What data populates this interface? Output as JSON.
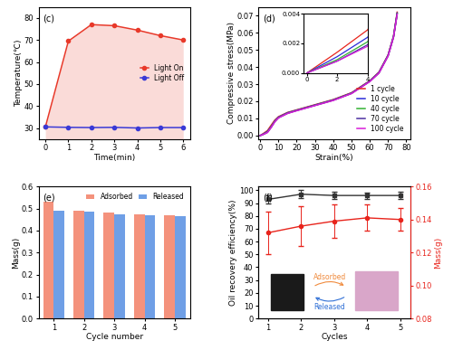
{
  "chart_data": [
    {
      "type": "line",
      "annotations": [
        "(c)"
      ],
      "x_label": "Time(min)",
      "y_label": "Temperature(℃)",
      "x": [
        0,
        1,
        2,
        3,
        4,
        5,
        6
      ],
      "series": [
        {
          "name": "Light On",
          "color": "#e8392a",
          "marker": "circle",
          "values": [
            30.5,
            69.5,
            77,
            76.5,
            74.5,
            72,
            70
          ]
        },
        {
          "name": "Light Off",
          "color": "#3a3ad6",
          "marker": "circle",
          "values": [
            30.5,
            30.3,
            30.2,
            30.3,
            30.0,
            30.2,
            30.2
          ]
        }
      ],
      "xlim": [
        -0.3,
        6.3
      ],
      "xticks": [
        0,
        1,
        2,
        3,
        4,
        5,
        6
      ],
      "ylim": [
        25,
        85
      ],
      "yticks": [
        30,
        40,
        50,
        60,
        70,
        80
      ],
      "legend": "center right"
    },
    {
      "type": "line",
      "annotations": [
        "(d)"
      ],
      "x_label": "Strain(%)",
      "y_label": "Compressive stress(MPa)",
      "x": [
        0,
        2,
        4,
        6,
        8,
        10,
        15,
        20,
        30,
        40,
        50,
        60,
        65,
        70,
        73,
        75
      ],
      "series": [
        {
          "name": "1 cycle",
          "color": "#e8241c",
          "values": [
            0,
            0.0014,
            0.0029,
            0.006,
            0.009,
            0.011,
            0.0135,
            0.015,
            0.018,
            0.021,
            0.025,
            0.032,
            0.037,
            0.047,
            0.058,
            0.072
          ]
        },
        {
          "name": "10 cycle",
          "color": "#2b2bd9",
          "values": [
            0,
            0.0011,
            0.0024,
            0.0052,
            0.0085,
            0.0107,
            0.0133,
            0.0148,
            0.0178,
            0.0208,
            0.0248,
            0.0318,
            0.0368,
            0.0468,
            0.0578,
            0.0715
          ]
        },
        {
          "name": "40 cycle",
          "color": "#33b233",
          "values": [
            0,
            0.0009,
            0.0021,
            0.005,
            0.0083,
            0.0105,
            0.0131,
            0.0147,
            0.0177,
            0.0207,
            0.0247,
            0.0317,
            0.0366,
            0.0466,
            0.0576,
            0.0712
          ]
        },
        {
          "name": "70 cycle",
          "color": "#4b2fa0",
          "values": [
            0,
            0.0008,
            0.0019,
            0.0048,
            0.0081,
            0.0104,
            0.013,
            0.0146,
            0.0176,
            0.0206,
            0.0246,
            0.0316,
            0.0365,
            0.0465,
            0.0575,
            0.071
          ]
        },
        {
          "name": "100 cycle",
          "color": "#d81bd8",
          "values": [
            0,
            0.0008,
            0.0018,
            0.0047,
            0.008,
            0.0103,
            0.0129,
            0.0145,
            0.0175,
            0.0205,
            0.0245,
            0.0315,
            0.0364,
            0.0464,
            0.0574,
            0.0708
          ]
        }
      ],
      "xlim": [
        -1,
        82
      ],
      "xticks": [
        0,
        10,
        20,
        30,
        40,
        50,
        60,
        70,
        80
      ],
      "ylim": [
        -0.002,
        0.075
      ],
      "yticks": [
        {
          "value": 0.0,
          "label": "0.00"
        },
        {
          "value": 0.01,
          "label": "0.01"
        },
        {
          "value": 0.02,
          "label": "0.02"
        },
        {
          "value": 0.03,
          "label": "0.03"
        },
        {
          "value": 0.04,
          "label": "0.04"
        },
        {
          "value": 0.05,
          "label": "0.05"
        },
        {
          "value": 0.06,
          "label": "0.06"
        },
        {
          "value": 0.07,
          "label": "0.07"
        }
      ],
      "legend": "lower right",
      "inset": {
        "xlim": [
          -0.2,
          4
        ],
        "xticks": [
          0,
          2,
          4
        ],
        "ylim": [
          0,
          0.004
        ],
        "yticks": [
          {
            "value": 0.0,
            "label": "0.000"
          },
          {
            "value": 0.002,
            "label": "0.002"
          },
          {
            "value": 0.004,
            "label": "0.004"
          }
        ]
      }
    },
    {
      "type": "bar",
      "annotations": [
        "(e)"
      ],
      "x_label": "Cycle number",
      "y_label": "Mass(g)",
      "categories": [
        "1",
        "2",
        "3",
        "4",
        "5"
      ],
      "series": [
        {
          "name": "Adsorbed",
          "color": "#f4927c",
          "values": [
            0.53,
            0.49,
            0.48,
            0.475,
            0.47
          ]
        },
        {
          "name": "Released",
          "color": "#6f9fe6",
          "values": [
            0.49,
            0.485,
            0.475,
            0.47,
            0.465
          ]
        }
      ],
      "ylim": [
        0,
        0.6
      ],
      "yticks": [
        0.0,
        0.1,
        0.2,
        0.3,
        0.4,
        0.5,
        0.6
      ],
      "legend": "upper right"
    },
    {
      "type": "line",
      "annotations": [
        "(f)",
        "Adsorbed",
        "Released"
      ],
      "x_label": "Cycles",
      "y_label": "Oil recovery efficiency(%)",
      "y2_label": "Mass(g)",
      "x": [
        1,
        2,
        3,
        4,
        5
      ],
      "series": [
        {
          "color": "#333333",
          "marker": "square",
          "values": [
            93,
            97,
            96,
            96,
            96
          ],
          "errors": [
            3,
            3,
            3,
            2.5,
            3
          ]
        },
        {
          "color": "#e8241c",
          "marker": "circle",
          "axis": "y2",
          "values": [
            0.132,
            0.136,
            0.139,
            0.141,
            0.14
          ],
          "errors": [
            0.013,
            0.012,
            0.01,
            0.008,
            0.007
          ]
        }
      ],
      "xlim": [
        0.7,
        5.3
      ],
      "xticks": [
        1,
        2,
        3,
        4,
        5
      ],
      "ylim": [
        0,
        103
      ],
      "yticks": [
        0,
        10,
        20,
        30,
        40,
        50,
        60,
        70,
        80,
        90,
        100
      ],
      "y2lim": [
        0.08,
        0.16
      ],
      "y2ticks": [
        {
          "value": 0.08,
          "label": "0.08"
        },
        {
          "value": 0.1,
          "label": "0.10"
        },
        {
          "value": 0.12,
          "label": "0.12"
        },
        {
          "value": 0.14,
          "label": "0.14"
        },
        {
          "value": 0.16,
          "label": "0.16"
        }
      ]
    }
  ]
}
